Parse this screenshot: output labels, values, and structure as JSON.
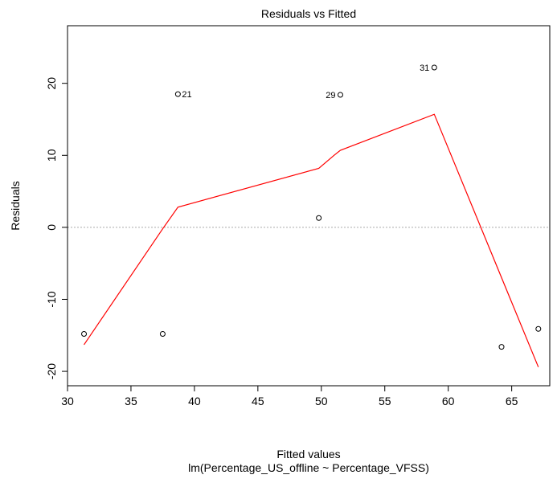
{
  "chart_data": {
    "type": "scatter",
    "title": "Residuals vs Fitted",
    "xlabel": "Fitted values",
    "subtitle": "lm(Percentage_US_offline ~ Percentage_VFSS)",
    "ylabel": "Residuals",
    "xlim": [
      30,
      68
    ],
    "ylim": [
      -22,
      28
    ],
    "xticks": [
      30,
      35,
      40,
      45,
      50,
      55,
      60,
      65
    ],
    "yticks": [
      -20,
      -10,
      0,
      10,
      20
    ],
    "xtick_labels": [
      "30",
      "35",
      "40",
      "45",
      "50",
      "55",
      "60",
      "65"
    ],
    "ytick_labels": [
      "-20",
      "-10",
      "0",
      "10",
      "20"
    ],
    "zero_line": 0,
    "points": [
      {
        "x": 31.3,
        "y": -14.8,
        "label": ""
      },
      {
        "x": 37.5,
        "y": -14.8,
        "label": ""
      },
      {
        "x": 38.7,
        "y": 18.5,
        "label": "21"
      },
      {
        "x": 49.8,
        "y": 1.3,
        "label": ""
      },
      {
        "x": 51.5,
        "y": 18.4,
        "label": "29"
      },
      {
        "x": 58.9,
        "y": 22.2,
        "label": "31"
      },
      {
        "x": 64.2,
        "y": -16.6,
        "label": ""
      },
      {
        "x": 67.1,
        "y": -14.1,
        "label": ""
      }
    ],
    "smoother": {
      "x": [
        31.3,
        37.5,
        38.7,
        49.8,
        51.0,
        51.5,
        58.9,
        67.1
      ],
      "y": [
        -16.3,
        -0.2,
        2.8,
        8.2,
        10.0,
        10.7,
        15.7,
        -19.4
      ]
    },
    "colors": {
      "smoother": "#ff0000",
      "points": "#000000",
      "zero_line": "#aaaaaa"
    }
  }
}
